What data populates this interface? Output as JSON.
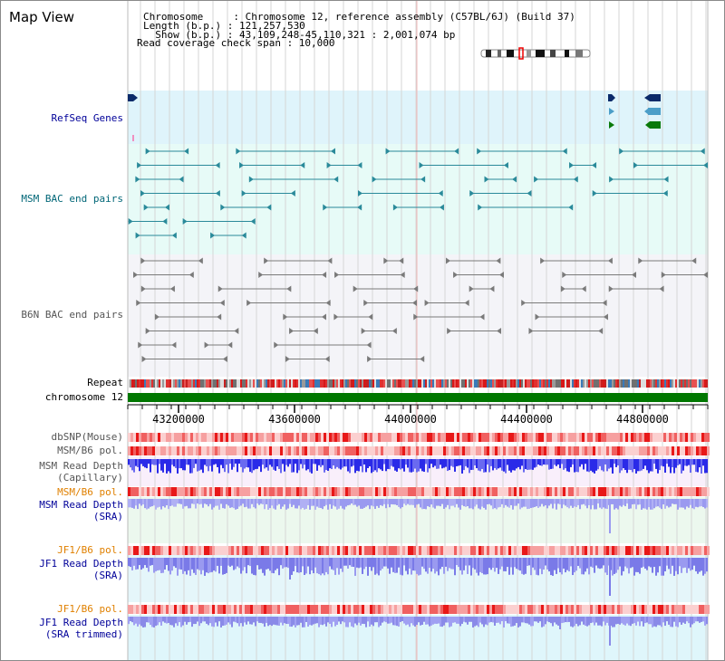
{
  "title": "Map View",
  "info": {
    "line1": "Chromosome     : Chromosome 12, reference assembly (C57BL/6J) (Build 37)",
    "line2": "Length (b.p.) : 121,257,530",
    "line3": "  Show (b.p.) : 43,109,248-45,110,321 : 2,001,074 bp",
    "line4": "Read coverage check span : 10,000"
  },
  "tracks": {
    "refseq": "RefSeq Genes",
    "msm_bac": "MSM BAC end pairs",
    "b6n_bac": "B6N BAC end pairs",
    "repeat": "Repeat",
    "chromosome": "chromosome 12",
    "dbsnp": "dbSNP(Mouse)",
    "msm_b6_pol": "MSM/B6 pol.",
    "msm_depth_cap_1": "MSM Read Depth",
    "msm_depth_cap_2": "(Capillary)",
    "msm_b6_pol_2": "MSM/B6 pol.",
    "msm_depth_sra_1": "MSM Read Depth",
    "msm_depth_sra_2": "(SRA)",
    "jf1_b6_pol": "JF1/B6 pol.",
    "jf1_depth_sra_1": "JF1 Read Depth",
    "jf1_depth_sra_2": "(SRA)",
    "jf1_b6_pol_2": "JF1/B6 pol.",
    "jf1_depth_trim_1": "JF1 Read Depth",
    "jf1_depth_trim_2": "(SRA trimmed)"
  },
  "axis": {
    "ticks": [
      "43200000",
      "43600000",
      "44000000",
      "44400000",
      "44800000"
    ]
  },
  "colors": {
    "label_blue": "#000099",
    "label_teal": "#006677",
    "label_gray": "#555555",
    "label_orange": "#e08000",
    "chromosome_green": "#007700"
  }
}
